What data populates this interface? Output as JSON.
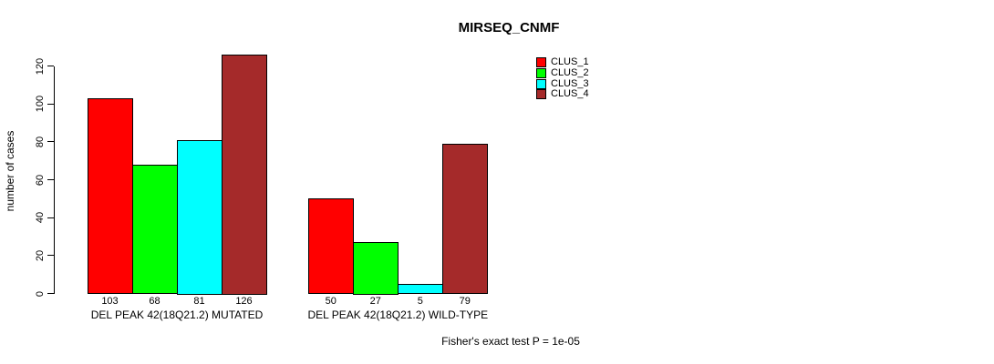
{
  "title": "MIRSEQ_CNMF",
  "caption": "Fisher's exact test P = 1e-05",
  "y_axis": {
    "label": "number of cases",
    "ticks": [
      0,
      20,
      40,
      60,
      80,
      100,
      120
    ],
    "max": 120
  },
  "legend": [
    {
      "label": "CLUS_1",
      "color": "#ff0000"
    },
    {
      "label": "CLUS_2",
      "color": "#00ff00"
    },
    {
      "label": "CLUS_3",
      "color": "#00ffff"
    },
    {
      "label": "CLUS_4",
      "color": "#a52a2a"
    }
  ],
  "chart_data": {
    "type": "bar",
    "title": "MIRSEQ_CNMF",
    "xlabel": "",
    "ylabel": "number of cases",
    "ylim": [
      0,
      120
    ],
    "grid": false,
    "legend_position": "top-right-inside",
    "bar_value_labels_shown": true,
    "categories": [
      "DEL PEAK 42(18Q21.2) MUTATED",
      "DEL PEAK 42(18Q21.2) WILD-TYPE"
    ],
    "groups": [
      {
        "label": "DEL PEAK 42(18Q21.2) MUTATED",
        "values": [
          103,
          68,
          81,
          126
        ]
      },
      {
        "label": "DEL PEAK 42(18Q21.2) WILD-TYPE",
        "values": [
          50,
          27,
          5,
          79
        ]
      }
    ],
    "series": [
      {
        "name": "CLUS_1",
        "color": "#ff0000",
        "values": [
          103,
          50
        ]
      },
      {
        "name": "CLUS_2",
        "color": "#00ff00",
        "values": [
          68,
          27
        ]
      },
      {
        "name": "CLUS_3",
        "color": "#00ffff",
        "values": [
          81,
          5
        ]
      },
      {
        "name": "CLUS_4",
        "color": "#a52a2a",
        "values": [
          126,
          79
        ]
      }
    ],
    "annotation": "Fisher's exact test P = 1e-05"
  }
}
